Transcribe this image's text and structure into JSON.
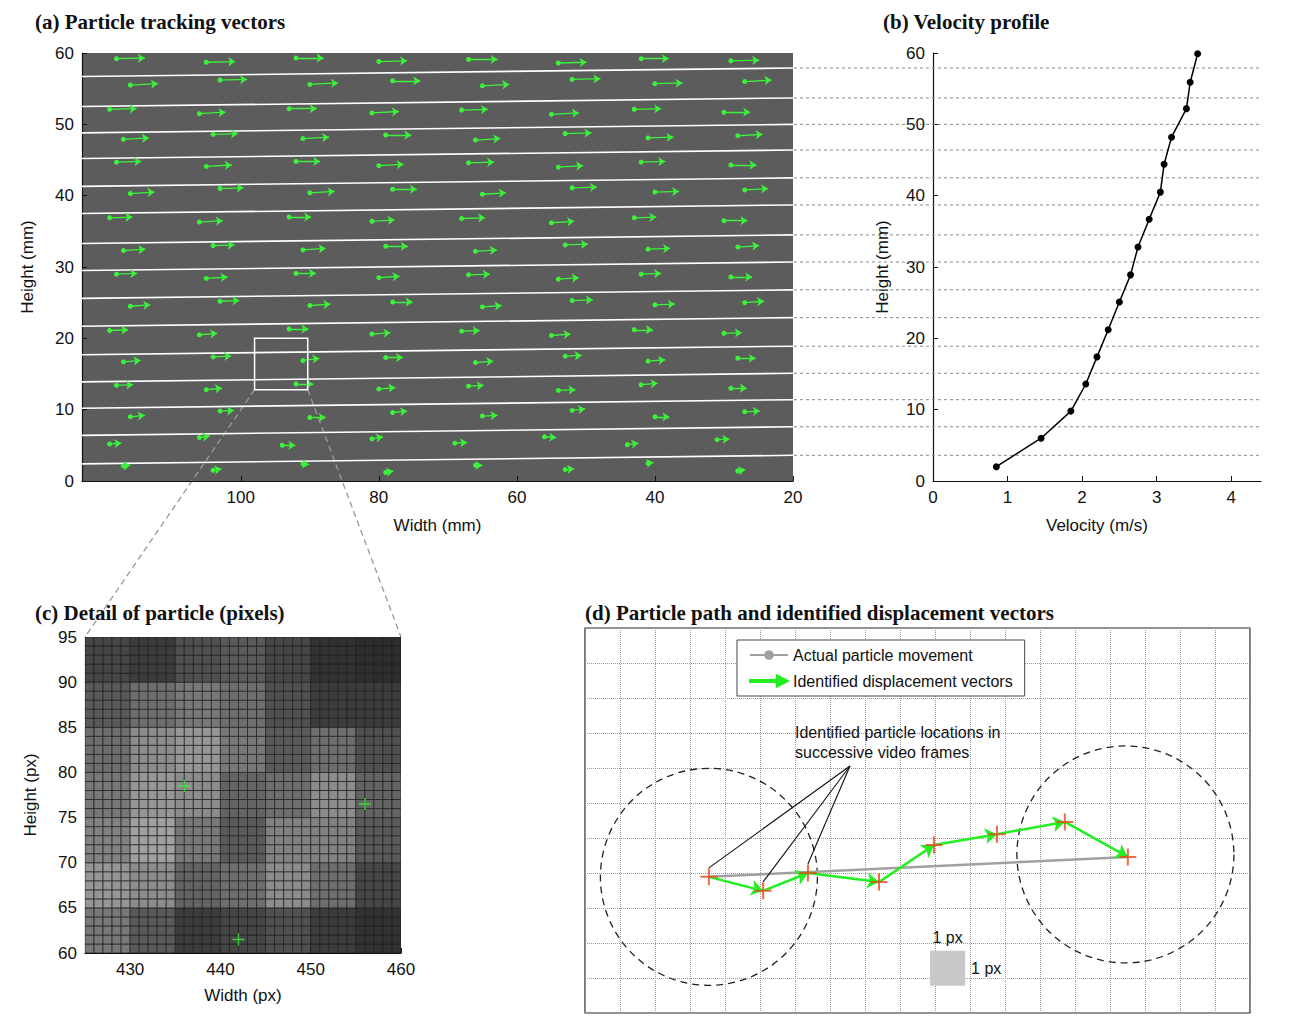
{
  "chart_data": [
    {
      "type": "vector",
      "title": "(a) Particle tracking vectors",
      "x_label": "Width (mm)",
      "y_label": "Height (mm)",
      "xlim": [
        123,
        20
      ],
      "ylim": [
        0,
        60
      ],
      "xticks": [
        100,
        80,
        60,
        40,
        20
      ],
      "yticks": [
        0,
        10,
        20,
        30,
        40,
        50,
        60
      ],
      "color": "#3cf03c",
      "bin_lines": [
        [
          2.4,
          3.6
        ],
        [
          6.4,
          7.6
        ],
        [
          10.2,
          11.4
        ],
        [
          13.9,
          15.1
        ],
        [
          17.7,
          18.9
        ],
        [
          21.7,
          22.9
        ],
        [
          25.6,
          26.8
        ],
        [
          29.5,
          30.7
        ],
        [
          33.3,
          34.5
        ],
        [
          37.5,
          38.7
        ],
        [
          41.3,
          42.5
        ],
        [
          45.2,
          46.4
        ],
        [
          48.8,
          50.0
        ],
        [
          52.5,
          53.7
        ],
        [
          56.7,
          57.9
        ]
      ],
      "inset": {
        "x": [
          98,
          90.3
        ],
        "y": [
          12.8,
          20
        ]
      },
      "vectors": [
        [
          117,
          2.1,
          -1.0,
          0.1
        ],
        [
          104,
          1.5,
          -1.2,
          0.2
        ],
        [
          91,
          2.4,
          -0.9,
          -0.1
        ],
        [
          79,
          1.2,
          -1.1,
          0.2
        ],
        [
          66,
          2.2,
          -1.0,
          0.0
        ],
        [
          53,
          1.6,
          -1.3,
          0.1
        ],
        [
          41,
          2.5,
          -0.8,
          0.1
        ],
        [
          28,
          1.4,
          -1.1,
          0.2
        ],
        [
          119,
          5.2,
          -1.7,
          0.1
        ],
        [
          106,
          6.1,
          -1.5,
          0.2
        ],
        [
          94,
          5.0,
          -1.9,
          0.0
        ],
        [
          81,
          5.9,
          -1.6,
          0.3
        ],
        [
          69,
          5.3,
          -1.8,
          0.1
        ],
        [
          56,
          6.2,
          -1.7,
          -0.1
        ],
        [
          44,
          5.1,
          -1.6,
          0.2
        ],
        [
          31,
          5.8,
          -1.8,
          0.1
        ],
        [
          116,
          9.0,
          -2.1,
          0.2
        ],
        [
          103,
          9.8,
          -2.0,
          0.1
        ],
        [
          90,
          8.9,
          -2.3,
          0.0
        ],
        [
          78,
          9.6,
          -2.1,
          0.2
        ],
        [
          65,
          9.1,
          -2.2,
          0.1
        ],
        [
          52,
          9.9,
          -1.9,
          0.2
        ],
        [
          40,
          9.0,
          -2.1,
          0.0
        ],
        [
          27,
          9.7,
          -2.2,
          0.1
        ],
        [
          118,
          13.4,
          -2.4,
          0.1
        ],
        [
          105,
          12.8,
          -2.3,
          0.2
        ],
        [
          92,
          13.6,
          -2.5,
          0.0
        ],
        [
          80,
          12.9,
          -2.4,
          0.2
        ],
        [
          67,
          13.3,
          -2.2,
          0.1
        ],
        [
          54,
          12.7,
          -2.5,
          0.1
        ],
        [
          42,
          13.5,
          -2.4,
          0.2
        ],
        [
          29,
          13.0,
          -2.3,
          0.0
        ],
        [
          117,
          16.7,
          -2.5,
          0.2
        ],
        [
          104,
          17.4,
          -2.6,
          0.1
        ],
        [
          91,
          16.9,
          -2.4,
          0.3
        ],
        [
          79,
          17.3,
          -2.5,
          0.0
        ],
        [
          66,
          16.6,
          -2.6,
          0.2
        ],
        [
          53,
          17.5,
          -2.4,
          0.1
        ],
        [
          41,
          16.8,
          -2.5,
          0.2
        ],
        [
          28,
          17.2,
          -2.6,
          0.0
        ],
        [
          119,
          21.1,
          -2.7,
          0.1
        ],
        [
          106,
          20.5,
          -2.6,
          0.2
        ],
        [
          93,
          21.3,
          -2.8,
          0.0
        ],
        [
          81,
          20.6,
          -2.7,
          0.2
        ],
        [
          68,
          21.0,
          -2.6,
          0.1
        ],
        [
          55,
          20.4,
          -2.8,
          0.2
        ],
        [
          43,
          21.2,
          -2.7,
          0.0
        ],
        [
          30,
          20.7,
          -2.6,
          0.1
        ],
        [
          116,
          24.5,
          -2.9,
          0.2
        ],
        [
          103,
          25.2,
          -2.8,
          0.1
        ],
        [
          90,
          24.6,
          -3.0,
          0.2
        ],
        [
          78,
          25.1,
          -2.9,
          0.0
        ],
        [
          65,
          24.4,
          -2.8,
          0.2
        ],
        [
          52,
          25.3,
          -3.0,
          0.1
        ],
        [
          40,
          24.7,
          -2.9,
          0.1
        ],
        [
          27,
          25.0,
          -2.8,
          0.2
        ],
        [
          118,
          29.0,
          -3.0,
          0.1
        ],
        [
          105,
          28.4,
          -3.1,
          0.2
        ],
        [
          92,
          29.1,
          -2.9,
          0.0
        ],
        [
          80,
          28.5,
          -3.0,
          0.2
        ],
        [
          67,
          28.9,
          -3.1,
          0.1
        ],
        [
          54,
          28.3,
          -3.0,
          0.2
        ],
        [
          42,
          29.0,
          -2.9,
          0.1
        ],
        [
          29,
          28.6,
          -3.1,
          0.0
        ],
        [
          117,
          32.3,
          -3.2,
          0.2
        ],
        [
          104,
          33.0,
          -3.1,
          0.1
        ],
        [
          91,
          32.4,
          -3.3,
          0.2
        ],
        [
          79,
          32.9,
          -3.2,
          0.0
        ],
        [
          66,
          32.2,
          -3.1,
          0.2
        ],
        [
          53,
          33.1,
          -3.3,
          0.1
        ],
        [
          41,
          32.5,
          -3.2,
          0.1
        ],
        [
          28,
          32.8,
          -3.1,
          0.2
        ],
        [
          119,
          36.9,
          -3.3,
          0.1
        ],
        [
          106,
          36.3,
          -3.4,
          0.2
        ],
        [
          93,
          37.0,
          -3.2,
          0.0
        ],
        [
          81,
          36.4,
          -3.3,
          0.2
        ],
        [
          68,
          36.8,
          -3.4,
          0.1
        ],
        [
          55,
          36.2,
          -3.3,
          0.2
        ],
        [
          43,
          36.9,
          -3.2,
          0.1
        ],
        [
          30,
          36.5,
          -3.4,
          0.0
        ],
        [
          116,
          40.3,
          -3.5,
          0.2
        ],
        [
          103,
          41.0,
          -3.4,
          0.1
        ],
        [
          90,
          40.4,
          -3.6,
          0.2
        ],
        [
          78,
          40.9,
          -3.5,
          0.0
        ],
        [
          65,
          40.2,
          -3.4,
          0.2
        ],
        [
          52,
          41.1,
          -3.6,
          0.1
        ],
        [
          40,
          40.5,
          -3.5,
          0.1
        ],
        [
          27,
          40.8,
          -3.4,
          0.2
        ],
        [
          118,
          44.7,
          -3.6,
          0.1
        ],
        [
          105,
          44.1,
          -3.7,
          0.2
        ],
        [
          92,
          44.8,
          -3.5,
          0.0
        ],
        [
          80,
          44.2,
          -3.6,
          0.2
        ],
        [
          67,
          44.6,
          -3.7,
          0.1
        ],
        [
          54,
          44.0,
          -3.6,
          0.2
        ],
        [
          42,
          44.7,
          -3.5,
          0.1
        ],
        [
          29,
          44.3,
          -3.7,
          0.0
        ],
        [
          117,
          47.9,
          -3.7,
          0.2
        ],
        [
          104,
          48.6,
          -3.6,
          0.1
        ],
        [
          91,
          48.0,
          -3.8,
          0.2
        ],
        [
          79,
          48.5,
          -3.7,
          0.0
        ],
        [
          66,
          47.8,
          -3.6,
          0.2
        ],
        [
          53,
          48.7,
          -3.8,
          0.1
        ],
        [
          41,
          48.1,
          -3.7,
          0.1
        ],
        [
          28,
          48.4,
          -3.6,
          0.2
        ],
        [
          119,
          52.1,
          -3.9,
          0.1
        ],
        [
          106,
          51.5,
          -3.8,
          0.2
        ],
        [
          93,
          52.2,
          -4.0,
          0.0
        ],
        [
          81,
          51.6,
          -3.9,
          0.2
        ],
        [
          68,
          52.0,
          -3.8,
          0.1
        ],
        [
          55,
          51.4,
          -4.0,
          0.2
        ],
        [
          43,
          52.1,
          -3.9,
          0.1
        ],
        [
          30,
          51.7,
          -3.8,
          0.0
        ],
        [
          116,
          55.5,
          -4.0,
          0.2
        ],
        [
          103,
          56.2,
          -3.9,
          0.1
        ],
        [
          90,
          55.6,
          -4.1,
          0.2
        ],
        [
          78,
          56.1,
          -4.0,
          0.0
        ],
        [
          65,
          55.4,
          -3.9,
          0.2
        ],
        [
          52,
          56.3,
          -4.1,
          0.1
        ],
        [
          40,
          55.7,
          -4.0,
          0.1
        ],
        [
          27,
          56.0,
          -3.9,
          0.2
        ],
        [
          118,
          59.2,
          -4.1,
          0.1
        ],
        [
          105,
          58.7,
          -4.2,
          0.1
        ],
        [
          92,
          59.3,
          -4.0,
          0.0
        ],
        [
          80,
          58.8,
          -4.1,
          0.1
        ],
        [
          67,
          59.1,
          -4.2,
          0.0
        ],
        [
          54,
          58.6,
          -4.1,
          0.1
        ],
        [
          42,
          59.2,
          -4.0,
          0.0
        ],
        [
          29,
          58.9,
          -4.1,
          0.1
        ]
      ]
    },
    {
      "type": "line",
      "title": "(b) Velocity profile",
      "x_label": "Velocity (m/s)",
      "y_label": "Height (mm)",
      "xlim": [
        0,
        4.4
      ],
      "ylim": [
        0,
        60
      ],
      "xticks": [
        0,
        1,
        2,
        3,
        4
      ],
      "yticks": [
        0,
        10,
        20,
        30,
        40,
        50,
        60
      ],
      "color": "#000000",
      "marker": "circle",
      "x": [
        0.85,
        1.45,
        1.85,
        2.05,
        2.2,
        2.35,
        2.5,
        2.65,
        2.75,
        2.9,
        3.05,
        3.1,
        3.2,
        3.4,
        3.45,
        3.55
      ],
      "y": [
        2.0,
        6.0,
        9.8,
        13.6,
        17.4,
        21.2,
        25.1,
        28.9,
        32.8,
        36.7,
        40.5,
        44.4,
        48.2,
        52.2,
        55.9,
        59.9
      ]
    },
    {
      "type": "heatmap",
      "title": "(c) Detail of particle (pixels)",
      "x_label": "Width (px)",
      "y_label": "Height (px)",
      "xlim": [
        425,
        460
      ],
      "ylim": [
        60,
        95
      ],
      "xticks": [
        430,
        440,
        450,
        460
      ],
      "yticks": [
        60,
        65,
        70,
        75,
        80,
        85,
        90,
        95
      ],
      "cells": [
        [
          70,
          60,
          80,
          90,
          70,
          50,
          45
        ],
        [
          90,
          110,
          120,
          110,
          80,
          60,
          60
        ],
        [
          110,
          140,
          150,
          120,
          90,
          110,
          80
        ],
        [
          120,
          150,
          140,
          100,
          110,
          140,
          100
        ],
        [
          130,
          160,
          120,
          90,
          130,
          130,
          90
        ],
        [
          150,
          140,
          100,
          110,
          140,
          110,
          70
        ],
        [
          120,
          90,
          60,
          70,
          80,
          60,
          50
        ]
      ],
      "markers": {
        "x": [
          436,
          456,
          442
        ],
        "y": [
          78.5,
          76.5,
          61.5
        ]
      },
      "color": "#3cf03c",
      "marker": "plus"
    },
    {
      "type": "diagram",
      "title": "(d) Particle path and identified displacement vectors",
      "xlim": [
        0,
        19
      ],
      "ylim": [
        0,
        11
      ],
      "xticks": [
        0,
        1,
        2,
        3,
        4,
        5,
        6,
        7,
        8,
        9,
        10,
        11,
        12,
        13,
        14,
        15,
        16,
        17,
        18,
        19
      ],
      "yticks": [
        0,
        1,
        2,
        3,
        4,
        5,
        6,
        7,
        8,
        9,
        10,
        11
      ],
      "grid": true,
      "tick_labels": false,
      "legend": "top",
      "series": [
        {
          "name": "Actual particle movement",
          "type": "line",
          "color": "#a0a0a0",
          "x": [
            3.54,
            15.51
          ],
          "y": [
            3.89,
            4.46
          ]
        },
        {
          "name": "Identified displacement vectors",
          "type": "arrows",
          "color": "#22ee22",
          "x": [
            3.54,
            5.09,
            6.37,
            8.4,
            9.97,
            11.77,
            13.71,
            15.51
          ],
          "y": [
            3.89,
            3.49,
            4.0,
            3.74,
            4.8,
            5.11,
            5.46,
            4.46
          ]
        },
        {
          "type": "scatter",
          "color": "#e8491d",
          "marker": "plus",
          "x": [
            3.54,
            5.09,
            6.37,
            8.4,
            9.97,
            11.77,
            13.71,
            15.51
          ],
          "y": [
            3.89,
            3.49,
            4.0,
            3.74,
            4.8,
            5.11,
            5.46,
            4.46
          ]
        }
      ],
      "circles": {
        "x": [
          3.54,
          15.44
        ],
        "y": [
          3.89,
          4.53
        ],
        "r": [
          3.1,
          3.1
        ]
      },
      "annotation": {
        "text": "Identified particle locations in successive video frames",
        "x": [
          3.54,
          5.09,
          6.37
        ],
        "y": [
          3.89,
          3.49,
          4.0
        ]
      },
      "scale_bar": {
        "label": "1 px",
        "x": 9.86,
        "y": 0.78,
        "size": 1
      }
    }
  ]
}
